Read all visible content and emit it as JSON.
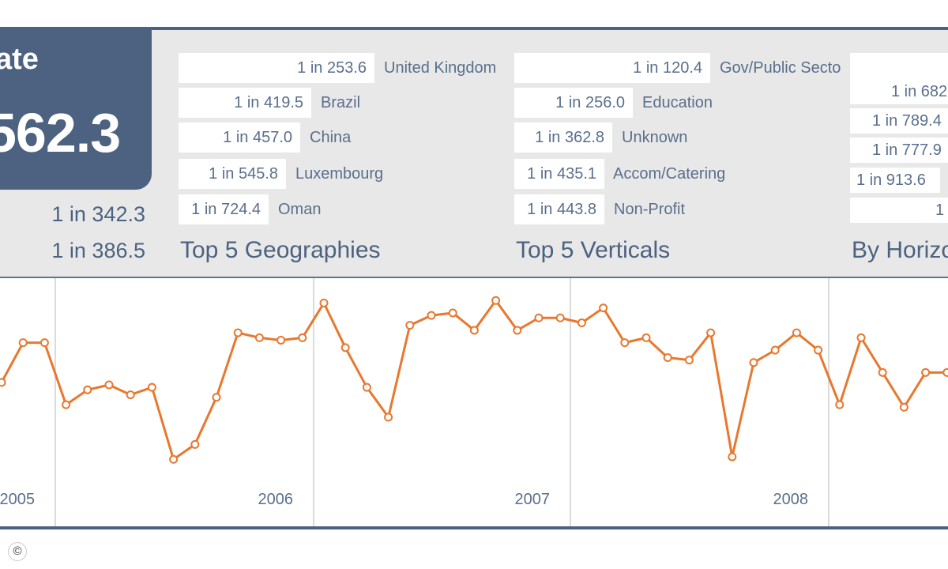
{
  "rate": {
    "label": "ate",
    "value": "562.3"
  },
  "sub_rates": [
    "1 in 342.3",
    "1 in 386.5"
  ],
  "geographies": {
    "title": "Top 5 Geographies",
    "rows": [
      {
        "value": "1 in 253.6",
        "label": "United Kingdom"
      },
      {
        "value": "1 in 419.5",
        "label": "Brazil"
      },
      {
        "value": "1 in 457.0",
        "label": "China"
      },
      {
        "value": "1 in 545.8",
        "label": "Luxembourg"
      },
      {
        "value": "1 in 724.4",
        "label": "Oman"
      }
    ]
  },
  "verticals": {
    "title": "Top 5 Verticals",
    "rows": [
      {
        "value": "1 in 120.4",
        "label": "Gov/Public Secto"
      },
      {
        "value": "1 in 256.0",
        "label": "Education"
      },
      {
        "value": "1 in 362.8",
        "label": "Unknown"
      },
      {
        "value": "1 in 435.1",
        "label": "Accom/Catering"
      },
      {
        "value": "1 in 443.8",
        "label": "Non-Profit"
      }
    ]
  },
  "horizontals": {
    "title": "By Horizo",
    "rows": [
      {
        "value": "",
        "label": ""
      },
      {
        "value": "1 in 682",
        "label": ""
      },
      {
        "value": "1 in 789.4",
        "label": ""
      },
      {
        "value": "1 in 777.9",
        "label": ""
      },
      {
        "value": "1 in 913.6",
        "label": ""
      },
      {
        "value": "1",
        "label": ""
      }
    ]
  },
  "copyright_icon": "copyright-icon",
  "chart_data": {
    "type": "line",
    "x_ticks": [
      "2005",
      "2006",
      "2007",
      "2008"
    ],
    "color": "#e8782f",
    "grid": true,
    "series": [
      {
        "values": [
          0.58,
          0.74,
          0.74,
          0.49,
          0.55,
          0.57,
          0.53,
          0.56,
          0.27,
          0.33,
          0.52,
          0.78,
          0.76,
          0.75,
          0.76,
          0.9,
          0.72,
          0.56,
          0.44,
          0.81,
          0.85,
          0.86,
          0.79,
          0.91,
          0.79,
          0.84,
          0.84,
          0.82,
          0.88,
          0.74,
          0.76,
          0.68,
          0.67,
          0.78,
          0.28,
          0.66,
          0.71,
          0.78,
          0.71,
          0.49,
          0.76,
          0.62,
          0.48,
          0.62,
          0.62,
          0.6
        ]
      }
    ]
  }
}
